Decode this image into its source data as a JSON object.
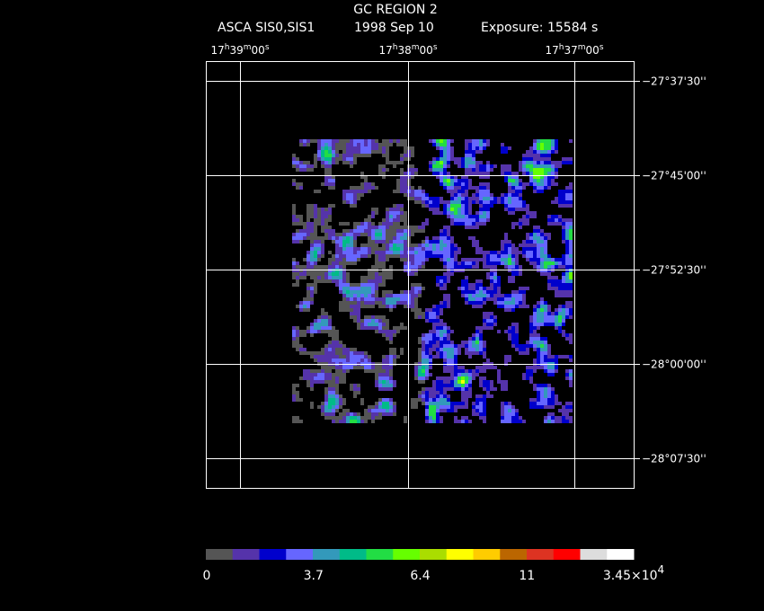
{
  "header": {
    "title": "GC REGION 2",
    "instrument": "ASCA SIS0,SIS1",
    "date": "1998 Sep 10",
    "exposure": "Exposure: 15584 s"
  },
  "ra_labels": [
    [
      "17",
      "h",
      "39",
      "m",
      "00",
      "s"
    ],
    [
      "17",
      "h",
      "38",
      "m",
      "00",
      "s"
    ],
    [
      "17",
      "h",
      "37",
      "m",
      "00",
      "s"
    ]
  ],
  "dec_labels": [
    "−27°37'30''",
    "−27°45'00''",
    "−27°52'30''",
    "−28°00'00''",
    "−28°07'30''"
  ],
  "colorbar": {
    "colors": [
      "#555555",
      "#5533aa",
      "#0000cc",
      "#6666ff",
      "#3399bb",
      "#00bb88",
      "#22dd44",
      "#66ff00",
      "#aadd00",
      "#ffff00",
      "#ffcc00",
      "#bb6600",
      "#dd3322",
      "#ff0000",
      "#dddddd",
      "#ffffff"
    ],
    "labels": [
      "0",
      "3.7",
      "6.4",
      "11",
      [
        "3.45×10",
        "4"
      ]
    ]
  }
}
